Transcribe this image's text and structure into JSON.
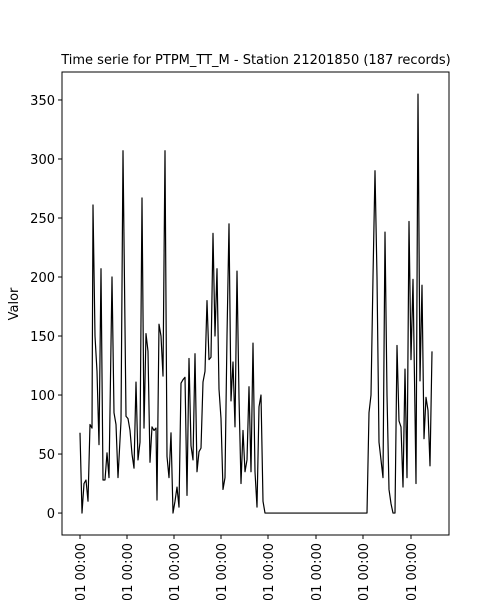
{
  "chart_data": {
    "type": "line",
    "title": "Time serie for PTPM_TT_M - Station 21201850 (187 records)",
    "y_label": "Valor",
    "color": "#000000",
    "x": [
      0,
      2,
      4,
      6,
      8,
      10,
      12,
      13,
      15,
      17,
      19,
      21,
      23,
      25,
      27,
      29,
      32,
      34,
      36,
      38,
      41,
      43,
      46,
      48,
      50,
      52,
      54,
      56,
      58,
      60,
      62,
      64,
      66,
      68,
      70,
      72,
      74,
      76,
      77,
      79,
      81,
      83,
      85,
      87,
      89,
      91,
      93,
      95,
      97,
      99,
      101,
      103,
      105,
      107,
      109,
      111,
      113,
      115,
      117,
      119,
      121,
      123,
      125,
      127,
      129,
      131,
      133,
      135,
      137,
      139,
      141,
      143,
      145,
      147,
      149,
      151,
      153,
      155,
      157,
      159,
      161,
      163,
      165,
      167,
      169,
      171,
      173,
      175,
      177,
      179,
      181,
      183,
      185,
      287,
      289,
      291,
      293,
      295,
      297,
      299,
      301,
      303,
      305,
      307,
      309,
      311,
      313,
      315,
      317,
      319,
      321,
      323,
      325,
      327,
      329,
      331,
      333,
      335,
      336,
      338,
      340,
      342,
      344,
      346,
      348,
      350,
      352
    ],
    "values": [
      68,
      0,
      25,
      28,
      10,
      75,
      72,
      261,
      150,
      120,
      58,
      207,
      28,
      28,
      51,
      30,
      200,
      85,
      75,
      30,
      78,
      307,
      82,
      80,
      70,
      50,
      38,
      111,
      45,
      60,
      267,
      72,
      152,
      137,
      43,
      73,
      70,
      72,
      11,
      160,
      150,
      116,
      307,
      48,
      30,
      68,
      0,
      10,
      22,
      5,
      110,
      113,
      115,
      15,
      131,
      57,
      45,
      135,
      35,
      52,
      55,
      111,
      120,
      180,
      130,
      132,
      237,
      150,
      207,
      105,
      80,
      20,
      30,
      150,
      245,
      95,
      128,
      73,
      205,
      98,
      25,
      70,
      35,
      45,
      107,
      35,
      144,
      35,
      5,
      90,
      100,
      10,
      0,
      0,
      85,
      100,
      200,
      290,
      200,
      60,
      45,
      30,
      238,
      100,
      20,
      8,
      0,
      0,
      142,
      78,
      73,
      22,
      122,
      30,
      247,
      130,
      198,
      85,
      25,
      355,
      112,
      193,
      63,
      98,
      87,
      40,
      137
    ],
    "xlim": [
      -18,
      369
    ],
    "xticks": [
      {
        "value": 0,
        "label": "01 00:00"
      },
      {
        "value": 47,
        "label": "01 00:00"
      },
      {
        "value": 94,
        "label": "01 00:00"
      },
      {
        "value": 141,
        "label": "01 00:00"
      },
      {
        "value": 188,
        "label": "01 00:00"
      },
      {
        "value": 236,
        "label": "01 00:00"
      },
      {
        "value": 283,
        "label": "01 00:00"
      },
      {
        "value": 331,
        "label": "01 00:00"
      }
    ],
    "ylim": [
      -18.6,
      373.7
    ],
    "yticks": [
      0,
      50,
      100,
      150,
      200,
      250,
      300,
      350
    ],
    "grid": false
  }
}
